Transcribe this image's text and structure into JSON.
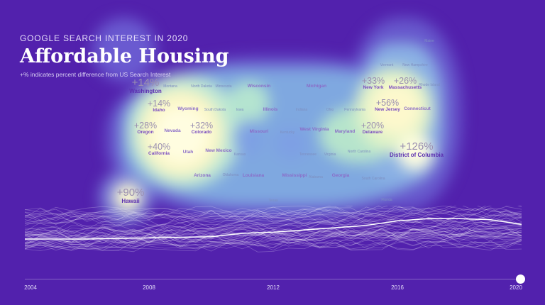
{
  "header": {
    "kicker": "GOOGLE SEARCH INTEREST IN 2020",
    "title": "Affordable Housing",
    "subtitle": "+% indicates percent difference from US Search Interest"
  },
  "colors": {
    "background": "#5221ad",
    "low": "#6a5ad0",
    "mid": "#8fd0e0",
    "high": "#fffbd6",
    "trend_line": "#ffffff"
  },
  "states": {
    "washington": {
      "name": "Washington",
      "pct": "+14%"
    },
    "idaho": {
      "name": "Idaho",
      "pct": "+14%"
    },
    "oregon": {
      "name": "Oregon",
      "pct": "+28%"
    },
    "colorado": {
      "name": "Colorado",
      "pct": "+32%"
    },
    "california": {
      "name": "California",
      "pct": "+40%"
    },
    "hawaii": {
      "name": "Hawaii",
      "pct": "+90%"
    },
    "new_york": {
      "name": "New York",
      "pct": "+33%"
    },
    "massachusetts": {
      "name": "Massachusetts",
      "pct": "+26%"
    },
    "new_jersey": {
      "name": "New Jersey",
      "pct": "+56%"
    },
    "delaware": {
      "name": "Delaware",
      "pct": "+20%"
    },
    "dc": {
      "name": "District of Columbia",
      "pct": "+126%"
    },
    "wyoming": {
      "name": "Wyoming"
    },
    "nevada": {
      "name": "Nevada"
    },
    "utah": {
      "name": "Utah"
    },
    "new_mexico": {
      "name": "New Mexico"
    },
    "arizona": {
      "name": "Arizona"
    },
    "wisconsin": {
      "name": "Wisconsin"
    },
    "michigan": {
      "name": "Michigan"
    },
    "missouri": {
      "name": "Missouri"
    },
    "illinois": {
      "name": "Illinois"
    },
    "west_virginia": {
      "name": "West Virginia"
    },
    "maryland": {
      "name": "Maryland"
    },
    "connecticut": {
      "name": "Connecticut"
    },
    "louisiana": {
      "name": "Louisiana"
    },
    "mississippi": {
      "name": "Mississippi"
    },
    "oklahoma": {
      "name": "Oklahoma"
    },
    "georgia": {
      "name": "Georgia"
    },
    "montana": {
      "name": "Montana"
    },
    "north_dakota": {
      "name": "North Dakota"
    },
    "minnesota": {
      "name": "Minnesota"
    },
    "south_dakota": {
      "name": "South Dakota"
    },
    "iowa": {
      "name": "Iowa"
    },
    "indiana": {
      "name": "Indiana"
    },
    "ohio": {
      "name": "Ohio"
    },
    "pennsylvania": {
      "name": "Pennsylvania"
    },
    "kentucky": {
      "name": "Kentucky"
    },
    "kansas": {
      "name": "Kansas"
    },
    "tennessee": {
      "name": "Tennessee"
    },
    "virginia": {
      "name": "Virginia"
    },
    "north_carolina": {
      "name": "North Carolina"
    },
    "south_carolina": {
      "name": "South Carolina"
    },
    "alabama": {
      "name": "Alabama"
    },
    "texas": {
      "name": "Texas"
    },
    "florida": {
      "name": "Florida"
    },
    "maine": {
      "name": "Maine"
    },
    "vermont": {
      "name": "Vermont"
    },
    "new_hampshire": {
      "name": "New Hampshire"
    },
    "rhode_island": {
      "name": "Rhode Island"
    }
  },
  "timeline": {
    "years": [
      "2004",
      "2008",
      "2012",
      "2016",
      "2020"
    ],
    "range": [
      2004,
      2020
    ],
    "selected_year": 2020,
    "us_trend": [
      [
        2004,
        30
      ],
      [
        2006,
        30
      ],
      [
        2008,
        31
      ],
      [
        2010,
        32
      ],
      [
        2011,
        35
      ],
      [
        2012,
        36
      ],
      [
        2014,
        40
      ],
      [
        2015,
        42
      ],
      [
        2016,
        46
      ],
      [
        2017,
        48
      ],
      [
        2018,
        48
      ],
      [
        2019,
        47
      ],
      [
        2020,
        43
      ]
    ]
  }
}
